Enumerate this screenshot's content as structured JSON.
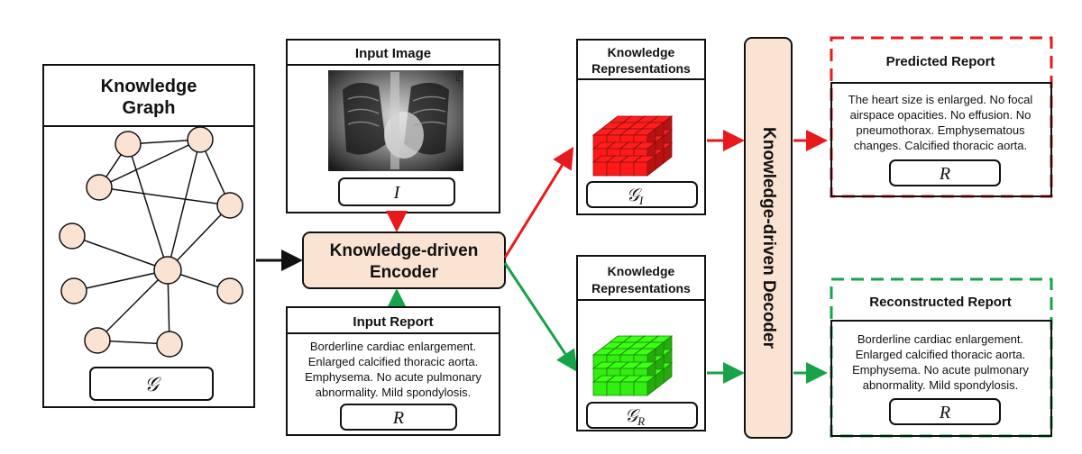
{
  "knowledge_graph": {
    "title_line1": "Knowledge",
    "title_line2": "Graph",
    "symbol": "𝒢"
  },
  "input_image": {
    "title": "Input Image",
    "symbol": "I",
    "xray_marker": "L"
  },
  "input_report": {
    "title": "Input Report",
    "lines": [
      "Borderline cardiac enlargement.",
      "Enlarged calcified thoracic aorta.",
      "Emphysema. No acute pulmonary",
      "abnormality. Mild spondylosis."
    ],
    "symbol": "R"
  },
  "encoder": {
    "line1": "Knowledge-driven",
    "line2": "Encoder"
  },
  "knowledge_repr_image": {
    "title_line1": "Knowledge",
    "title_line2": "Representations",
    "symbol": "𝒢",
    "subscript": "I",
    "color": "#ff1a1a"
  },
  "knowledge_repr_report": {
    "title_line1": "Knowledge",
    "title_line2": "Representations",
    "symbol": "𝒢",
    "subscript": "R",
    "color": "#33ee11"
  },
  "decoder": {
    "label": "Knowledge-driven Decoder"
  },
  "predicted_report": {
    "title": "Predicted Report",
    "lines": [
      "The heart size is enlarged. No focal",
      "airspace opacities. No effusion. No",
      "pneumothorax. Emphysematous",
      "changes. Calcified thoracic aorta."
    ],
    "symbol": "R",
    "border_color": "#e8191c"
  },
  "reconstructed_report": {
    "title": "Reconstructed Report",
    "lines": [
      "Borderline cardiac enlargement.",
      "Enlarged calcified thoracic aorta.",
      "Emphysema. No acute pulmonary",
      "abnormality. Mild spondylosis."
    ],
    "symbol": "R",
    "border_color": "#16a34a"
  },
  "colors": {
    "node_fill": "#fbe3d3",
    "encoder_fill": "#fbe3d3",
    "decoder_fill": "#fbe3d3",
    "red_arrow": "#e8191c",
    "green_arrow": "#16a34a"
  }
}
